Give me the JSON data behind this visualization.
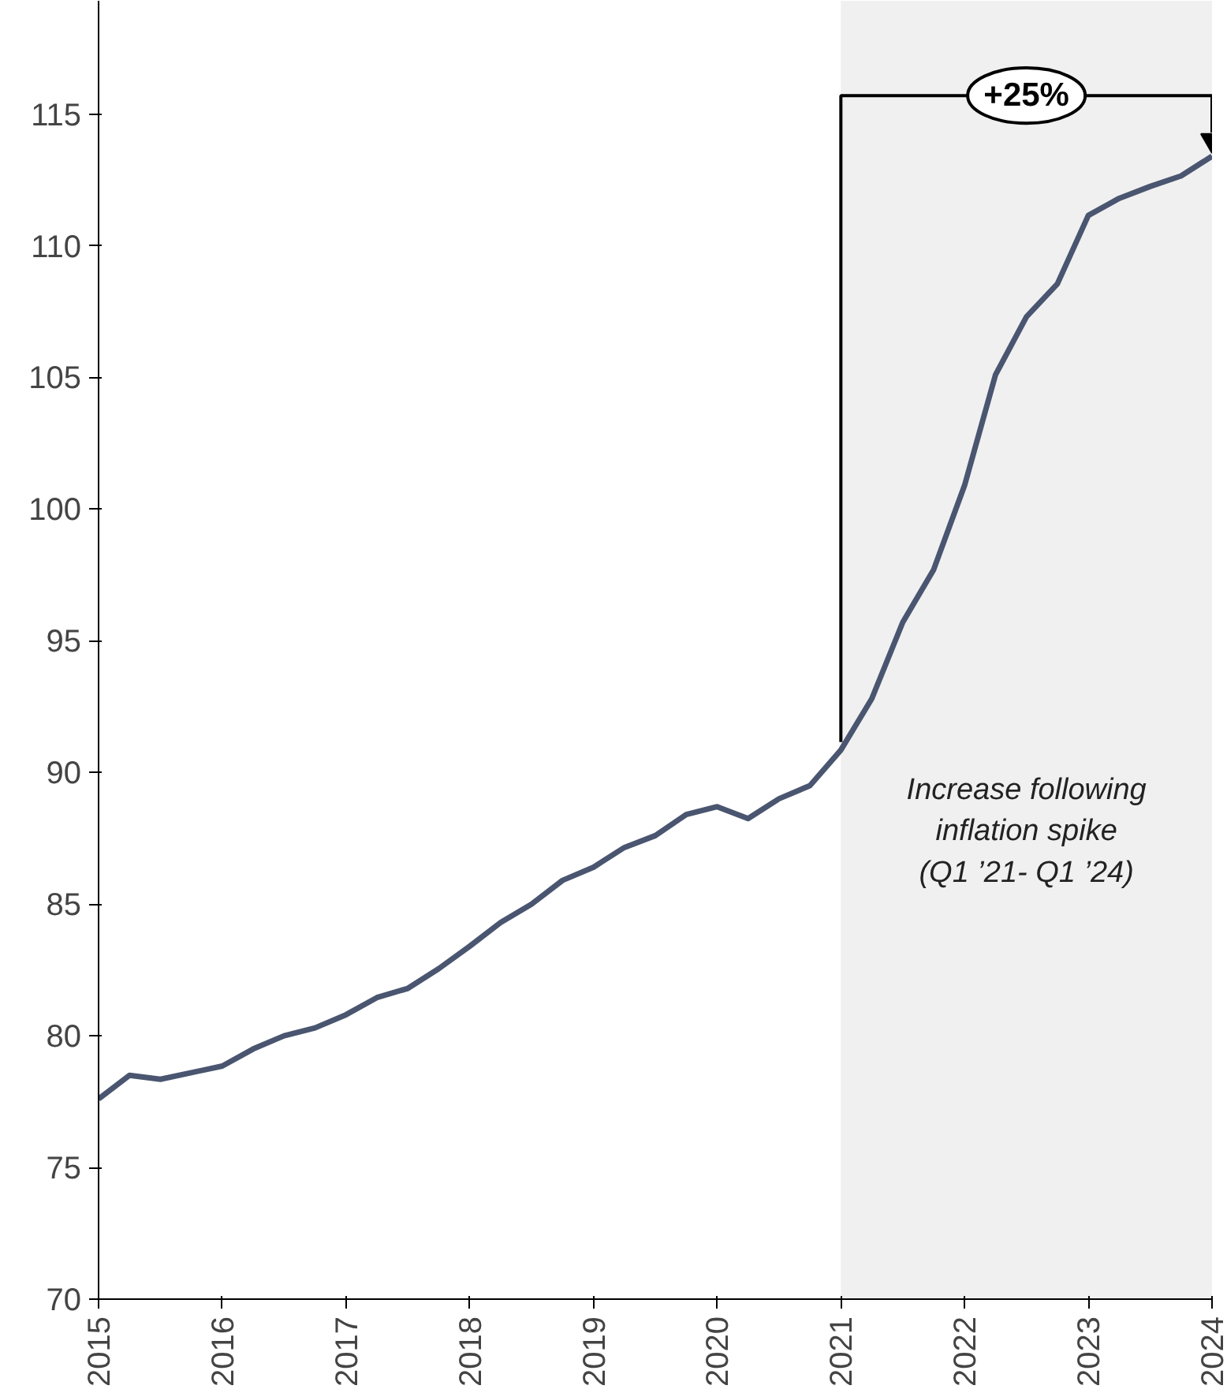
{
  "chart_data": {
    "type": "line",
    "xlim": [
      2015,
      2024
    ],
    "ylim": [
      70,
      119.3
    ],
    "xticks": [
      2015,
      2016,
      2017,
      2018,
      2019,
      2020,
      2021,
      2022,
      2023,
      2024
    ],
    "yticks": [
      70,
      75,
      80,
      85,
      90,
      95,
      100,
      105,
      110,
      115
    ],
    "x": [
      2015.0,
      2015.25,
      2015.5,
      2015.75,
      2016.0,
      2016.25,
      2016.5,
      2016.75,
      2017.0,
      2017.25,
      2017.5,
      2017.75,
      2018.0,
      2018.25,
      2018.5,
      2018.75,
      2019.0,
      2019.25,
      2019.5,
      2019.75,
      2020.0,
      2020.25,
      2020.5,
      2020.75,
      2021.0,
      2021.25,
      2021.5,
      2021.75,
      2022.0,
      2022.25,
      2022.5,
      2022.75,
      2023.0,
      2023.25,
      2023.5,
      2023.75,
      2024.0
    ],
    "series": [
      {
        "color": "#4a5570",
        "values": [
          77.6,
          78.5,
          78.35,
          78.6,
          78.85,
          79.5,
          80.0,
          80.3,
          80.8,
          81.45,
          81.8,
          82.55,
          83.4,
          84.3,
          85.0,
          85.9,
          86.4,
          87.15,
          87.6,
          88.4,
          88.7,
          88.25,
          89.0,
          89.5,
          90.85,
          92.8,
          95.7,
          97.7,
          100.9,
          105.1,
          107.3,
          108.55,
          111.15,
          111.8,
          112.25,
          112.65,
          113.4
        ]
      }
    ],
    "bands": [
      {
        "axis": "x",
        "from": 2021,
        "to": 2024,
        "label": "Increase following\ninflation spike\n(Q1 ’21- Q1 ’24)",
        "color": "#f0f0f0"
      }
    ],
    "annotations": [
      "+25%"
    ],
    "grid": false,
    "marker": "none",
    "line_style": "solid"
  }
}
